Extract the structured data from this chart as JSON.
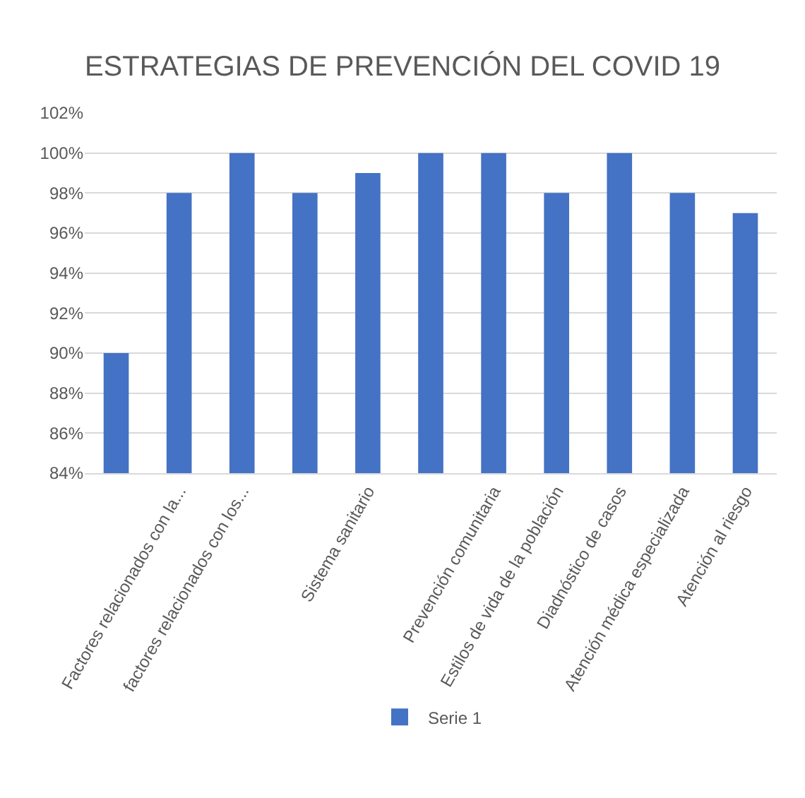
{
  "chart_data": {
    "type": "bar",
    "title": "ESTRATEGIAS DE PREVENCIÓN DEL COVID 19",
    "categories": [
      null,
      "Factores relacionados con la...",
      "factores relacionados con los...",
      null,
      "Sistema sanitario",
      null,
      "Prevención comunitaria",
      "Estilos de vida de la población",
      "Diadnóstico de casos",
      "Atención médica especializada",
      "Atención al riesgo"
    ],
    "series": [
      {
        "name": "Serie 1",
        "color": "#4472c4",
        "values": [
          90,
          98,
          100,
          98,
          99,
          100,
          100,
          98,
          100,
          98,
          97
        ]
      }
    ],
    "ylim": [
      84,
      102
    ],
    "yticks": [
      {
        "value": 84,
        "label": "84%"
      },
      {
        "value": 86,
        "label": "86%"
      },
      {
        "value": 88,
        "label": "88%"
      },
      {
        "value": 90,
        "label": "90%"
      },
      {
        "value": 92,
        "label": "92%"
      },
      {
        "value": 94,
        "label": "94%"
      },
      {
        "value": 96,
        "label": "96%"
      },
      {
        "value": 98,
        "label": "98%"
      },
      {
        "value": 100,
        "label": "100%"
      },
      {
        "value": 102,
        "label": "102%"
      }
    ],
    "grid": "y",
    "legend": "bottom"
  }
}
